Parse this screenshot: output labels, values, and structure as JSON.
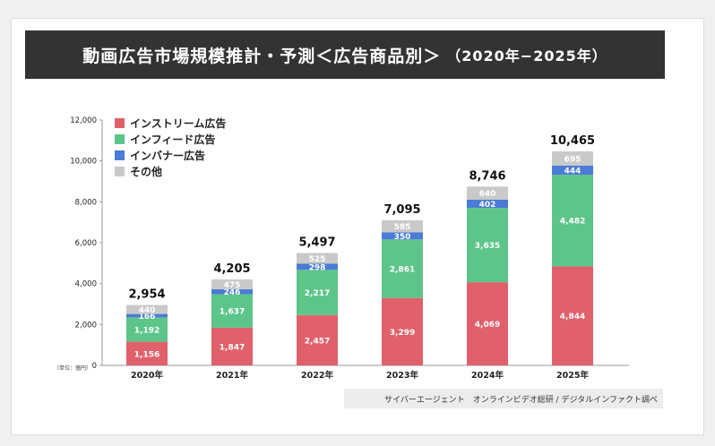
{
  "title": {
    "main": "動画広告市場規模推計・予測＜広告商品別＞",
    "sub": "（2020年−2025年）"
  },
  "unit_note": "（単位：億円）",
  "source": "サイバーエージェント　オンラインビデオ総研 / デジタルインファクト調べ",
  "colors": {
    "stream": "#e0616b",
    "feed": "#5ec58a",
    "banner": "#4a7bd6",
    "other": "#c9c9c9",
    "title_bg": "#333333"
  },
  "chart_data": {
    "type": "bar",
    "stacked": true,
    "categories": [
      "2020年",
      "2021年",
      "2022年",
      "2023年",
      "2024年",
      "2025年"
    ],
    "series": [
      {
        "name": "インストリーム広告",
        "values": [
          1156,
          1847,
          2457,
          3299,
          4069,
          4844
        ]
      },
      {
        "name": "インフィード広告",
        "values": [
          1192,
          1637,
          2217,
          2861,
          3635,
          4482
        ]
      },
      {
        "name": "インバナー広告",
        "values": [
          166,
          246,
          298,
          350,
          402,
          444
        ]
      },
      {
        "name": "その他",
        "values": [
          440,
          475,
          525,
          585,
          640,
          695
        ]
      }
    ],
    "totals": [
      "2,954",
      "4,205",
      "5,497",
      "7,095",
      "8,746",
      "10,465"
    ],
    "ylim": [
      0,
      12000
    ],
    "yticks": [
      0,
      2000,
      4000,
      6000,
      8000,
      10000,
      12000
    ],
    "ytick_labels": [
      "0",
      "2,000",
      "4,000",
      "6,000",
      "8,000",
      "10,000",
      "12,000"
    ],
    "legend_position": "top-left"
  }
}
